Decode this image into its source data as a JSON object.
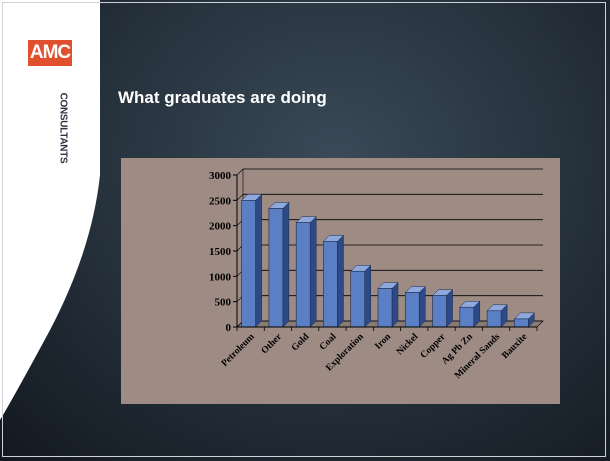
{
  "header": {
    "title": "What graduates are doing"
  },
  "logo": {
    "primary": "AMC",
    "secondary": "CONSULTANTS",
    "accent": "#e0502f"
  },
  "chart_data": {
    "type": "bar",
    "title": "",
    "xlabel": "",
    "ylabel": "",
    "categories": [
      "Petroleum",
      "Other",
      "Gold",
      "Coal",
      "Exploration",
      "Iron",
      "Nickel",
      "Copper",
      "Ag Pb Zn",
      "Mineral Sands",
      "Bauxite"
    ],
    "values": [
      2500,
      2340,
      2060,
      1690,
      1100,
      760,
      680,
      620,
      390,
      320,
      160
    ],
    "ylim": [
      0,
      3000
    ],
    "yticks": [
      "0",
      "500",
      "1000",
      "1500",
      "2000",
      "2500",
      "3000"
    ],
    "grid": true,
    "legend": "none",
    "bar_color": "#5b7fc4"
  }
}
